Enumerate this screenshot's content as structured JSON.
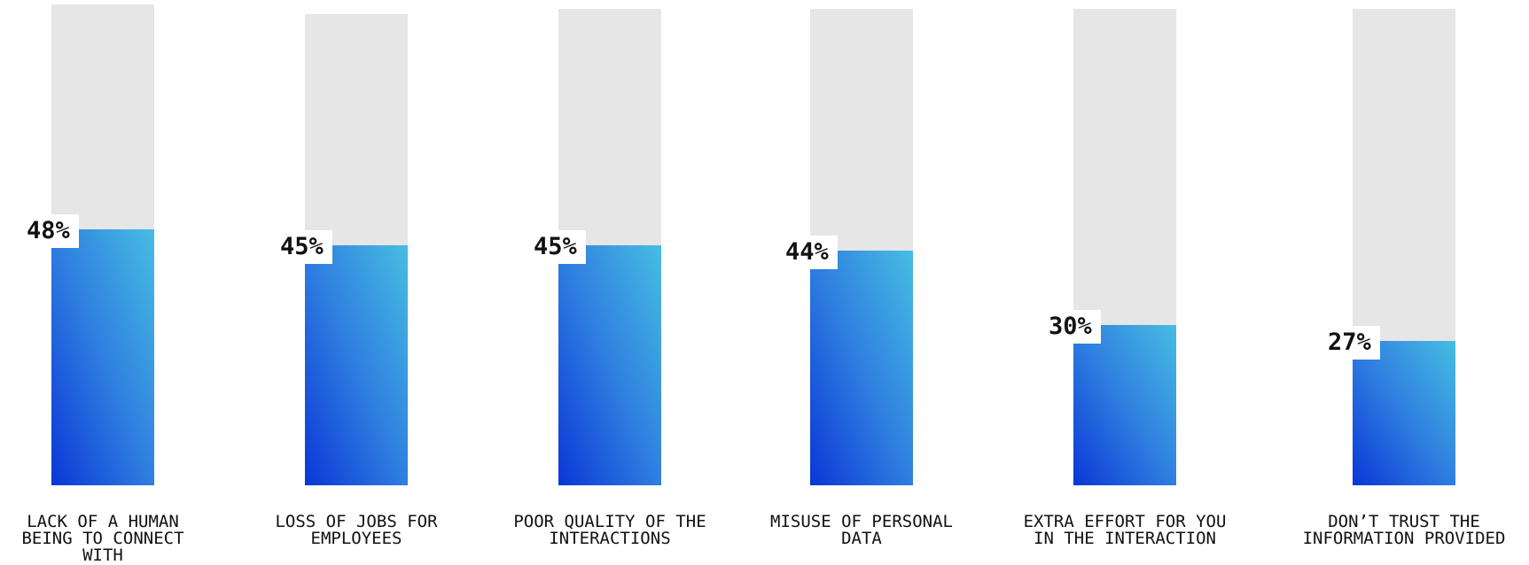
{
  "chart_data": {
    "type": "bar",
    "categories": [
      "LACK OF A HUMAN BEING TO CONNECT WITH",
      "LOSS OF JOBS FOR EMPLOYEES",
      "POOR QUALITY OF THE INTERACTIONS",
      "MISUSE OF PERSONAL DATA",
      "EXTRA EFFORT FOR YOU IN THE INTERACTION",
      "DON’T TRUST THE INFORMATION PROVIDED"
    ],
    "values": [
      48,
      45,
      45,
      44,
      30,
      27
    ],
    "value_labels": [
      "48%",
      "45%",
      "45%",
      "44%",
      "30%",
      "27%"
    ],
    "ylim": [
      0,
      100
    ],
    "grid": false,
    "colors": {
      "fill_start": "#0a37d6",
      "fill_end": "#47bde2",
      "track": "#e6e6e6"
    }
  }
}
